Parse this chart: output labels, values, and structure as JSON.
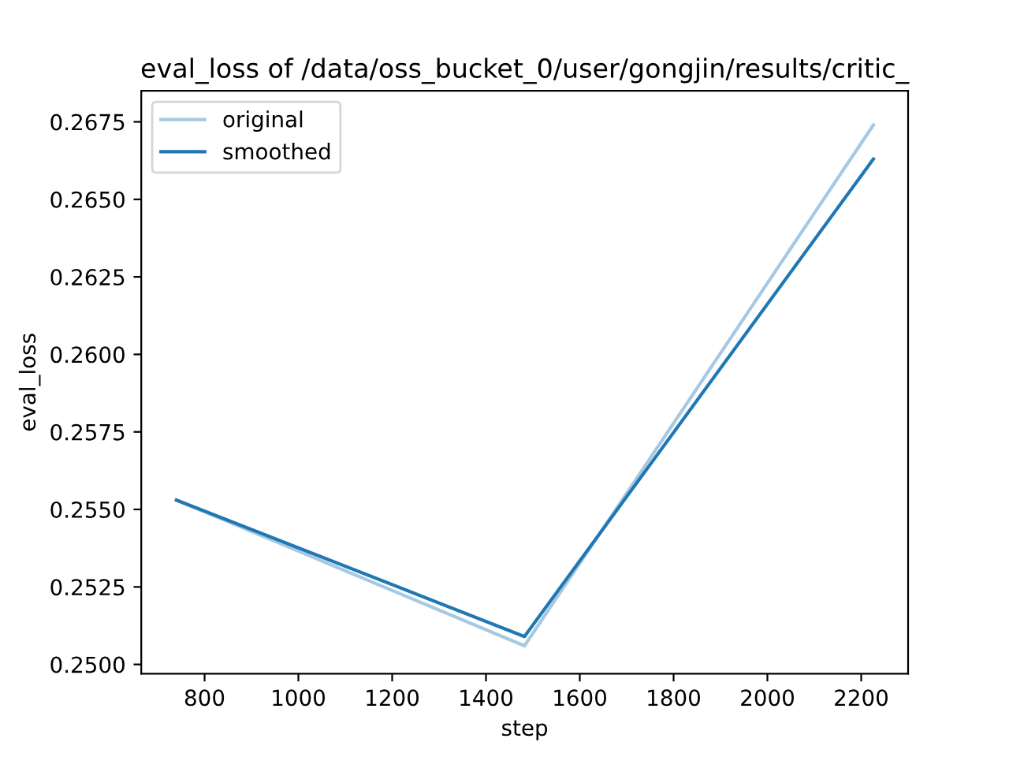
{
  "chart_data": {
    "type": "line",
    "title": "eval_loss of /data/oss_bucket_0/user/gongjin/results/critic_",
    "xlabel": "step",
    "ylabel": "eval_loss",
    "x": [
      740,
      1482,
      2226
    ],
    "series": [
      {
        "name": "original",
        "color": "#a6c9e3",
        "values": [
          0.2553,
          0.2506,
          0.2674
        ]
      },
      {
        "name": "smoothed",
        "color": "#1f77b4",
        "values": [
          0.2553,
          0.2509,
          0.2663
        ]
      }
    ],
    "xlim": [
      665,
      2300
    ],
    "ylim": [
      0.2497,
      0.2685
    ],
    "xticks": [
      800,
      1000,
      1200,
      1400,
      1600,
      1800,
      2000,
      2200
    ],
    "yticks": [
      {
        "value": 0.25,
        "label": "0.2500"
      },
      {
        "value": 0.2525,
        "label": "0.2525"
      },
      {
        "value": 0.255,
        "label": "0.2550"
      },
      {
        "value": 0.2575,
        "label": "0.2575"
      },
      {
        "value": 0.26,
        "label": "0.2600"
      },
      {
        "value": 0.2625,
        "label": "0.2625"
      },
      {
        "value": 0.265,
        "label": "0.2650"
      },
      {
        "value": 0.2675,
        "label": "0.2675"
      }
    ],
    "legend": "top left",
    "grid": false,
    "marker": "none",
    "line_style": "solid"
  }
}
